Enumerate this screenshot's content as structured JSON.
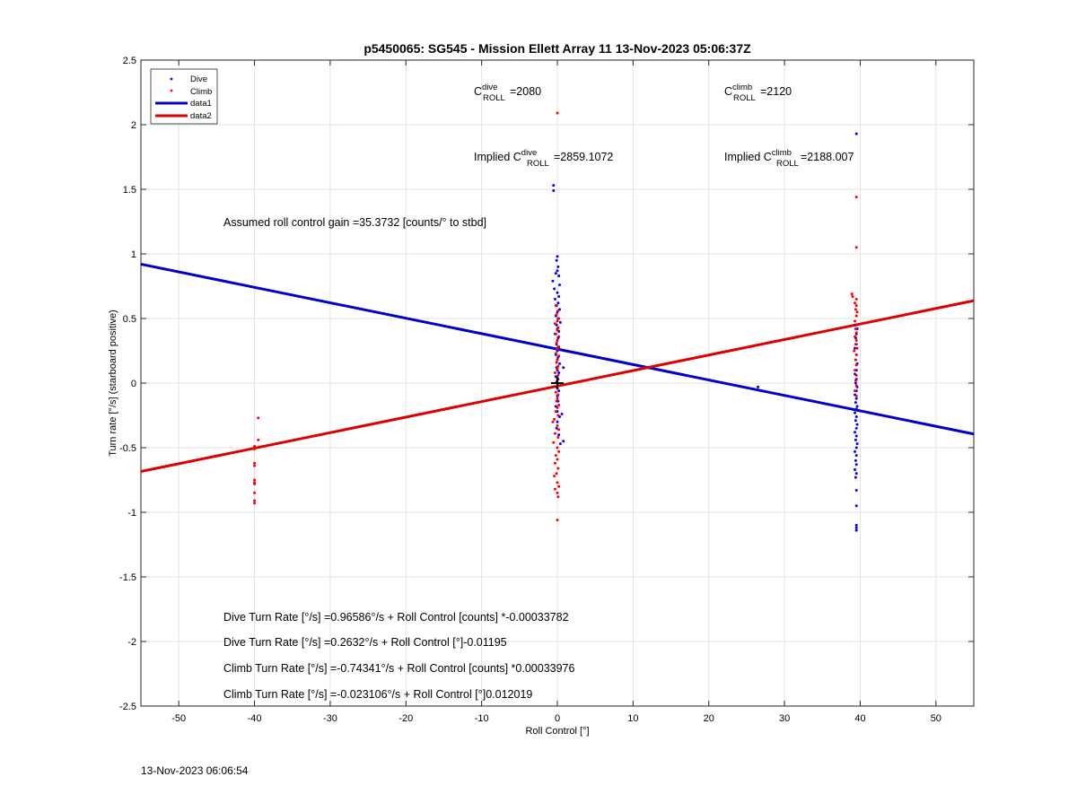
{
  "chart_data": {
    "type": "scatter",
    "title": "p5450065: SG545 - Mission Ellett Array 11 13-Nov-2023 05:06:37Z",
    "xlabel": "Roll Control [°]",
    "ylabel": "Turn rate [°/s] (starboard positive)",
    "xlim": [
      -55,
      55
    ],
    "ylim": [
      -2.5,
      2.5
    ],
    "xticks": [
      -50,
      -40,
      -30,
      -20,
      -10,
      0,
      10,
      20,
      30,
      40,
      50
    ],
    "yticks": [
      -2.5,
      -2,
      -1.5,
      -1,
      -0.5,
      0,
      0.5,
      1,
      1.5,
      2,
      2.5
    ],
    "grid": true,
    "legend_position": "top-left",
    "legend": [
      {
        "label": "Dive",
        "style": "marker",
        "color": "#0000ff"
      },
      {
        "label": "Climb",
        "style": "marker",
        "color": "#ff0000"
      },
      {
        "label": "data1",
        "style": "line",
        "color": "#0000cc"
      },
      {
        "label": "data2",
        "style": "line",
        "color": "#dd0000"
      }
    ],
    "series": [
      {
        "name": "Dive",
        "kind": "scatter",
        "color": "#0000ff",
        "points": [
          [
            -0.5,
            1.53
          ],
          [
            -0.5,
            1.49
          ],
          [
            0,
            0.98
          ],
          [
            -0.1,
            0.95
          ],
          [
            0.1,
            0.9
          ],
          [
            0,
            0.87
          ],
          [
            -0.2,
            0.85
          ],
          [
            0.2,
            0.83
          ],
          [
            -0.6,
            0.79
          ],
          [
            0.3,
            0.76
          ],
          [
            -0.4,
            0.73
          ],
          [
            0,
            0.7
          ],
          [
            0.2,
            0.67
          ],
          [
            -0.3,
            0.65
          ],
          [
            0.1,
            0.62
          ],
          [
            -0.1,
            0.6
          ],
          [
            0.3,
            0.57
          ],
          [
            0,
            0.55
          ],
          [
            -0.2,
            0.52
          ],
          [
            0.1,
            0.5
          ],
          [
            0.4,
            0.47
          ],
          [
            -0.1,
            0.45
          ],
          [
            0,
            0.42
          ],
          [
            0.2,
            0.4
          ],
          [
            -0.3,
            0.38
          ],
          [
            0.1,
            0.35
          ],
          [
            0,
            0.33
          ],
          [
            -0.1,
            0.3
          ],
          [
            0.2,
            0.28
          ],
          [
            0,
            0.25
          ],
          [
            -0.2,
            0.22
          ],
          [
            0.1,
            0.2
          ],
          [
            0,
            0.18
          ],
          [
            0.3,
            0.15
          ],
          [
            -0.1,
            0.12
          ],
          [
            0.8,
            0.12
          ],
          [
            0,
            0.1
          ],
          [
            0.2,
            0.08
          ],
          [
            -0.2,
            0.05
          ],
          [
            0.1,
            0.03
          ],
          [
            0,
            0.0
          ],
          [
            -0.1,
            -0.03
          ],
          [
            0.2,
            -0.06
          ],
          [
            0,
            -0.1
          ],
          [
            0.1,
            -0.14
          ],
          [
            -0.2,
            -0.18
          ],
          [
            0,
            -0.22
          ],
          [
            0.3,
            -0.26
          ],
          [
            0.6,
            -0.24
          ],
          [
            0,
            -0.3
          ],
          [
            -0.1,
            -0.35
          ],
          [
            0.2,
            -0.4
          ],
          [
            0.8,
            -0.45
          ],
          [
            0.4,
            -0.47
          ],
          [
            26.5,
            -0.03
          ],
          [
            39.5,
            1.93
          ],
          [
            39.4,
            0.45
          ],
          [
            39.6,
            0.42
          ],
          [
            39.5,
            0.38
          ],
          [
            39.4,
            0.35
          ],
          [
            39.5,
            0.3
          ],
          [
            39.3,
            0.27
          ],
          [
            39.5,
            0.22
          ],
          [
            39.4,
            0.18
          ],
          [
            39.6,
            0.15
          ],
          [
            39.5,
            0.1
          ],
          [
            39.3,
            0.07
          ],
          [
            39.5,
            0.03
          ],
          [
            39.4,
            0.0
          ],
          [
            39.6,
            -0.03
          ],
          [
            39.5,
            -0.06
          ],
          [
            39.3,
            -0.09
          ],
          [
            39.5,
            -0.12
          ],
          [
            39.4,
            -0.15
          ],
          [
            39.6,
            -0.18
          ],
          [
            39.5,
            -0.2
          ],
          [
            39.3,
            -0.23
          ],
          [
            39.5,
            -0.26
          ],
          [
            39.4,
            -0.29
          ],
          [
            39.6,
            -0.32
          ],
          [
            39.5,
            -0.35
          ],
          [
            39.3,
            -0.38
          ],
          [
            39.5,
            -0.41
          ],
          [
            39.4,
            -0.44
          ],
          [
            39.6,
            -0.47
          ],
          [
            39.5,
            -0.5
          ],
          [
            39.3,
            -0.53
          ],
          [
            39.5,
            -0.56
          ],
          [
            39.4,
            -0.6
          ],
          [
            39.5,
            -0.63
          ],
          [
            39.3,
            -0.67
          ],
          [
            39.5,
            -0.7
          ],
          [
            39.4,
            -0.73
          ],
          [
            39.5,
            -0.83
          ],
          [
            39.5,
            -0.95
          ],
          [
            39.5,
            -1.1
          ],
          [
            39.5,
            -1.12
          ],
          [
            39.5,
            -1.14
          ]
        ]
      },
      {
        "name": "Climb",
        "kind": "scatter",
        "color": "#ff0000",
        "points": [
          [
            -39.5,
            -0.27
          ],
          [
            -39.5,
            -0.44
          ],
          [
            -40,
            -0.49
          ],
          [
            -40,
            -0.51
          ],
          [
            -40,
            -0.62
          ],
          [
            -40,
            -0.64
          ],
          [
            -40,
            -0.75
          ],
          [
            -40,
            -0.77
          ],
          [
            -40,
            -0.78
          ],
          [
            -40,
            -0.85
          ],
          [
            -40,
            -0.91
          ],
          [
            -40,
            -0.93
          ],
          [
            0,
            2.09
          ],
          [
            -0.2,
            0.6
          ],
          [
            0.1,
            0.56
          ],
          [
            -0.1,
            0.53
          ],
          [
            0.2,
            0.5
          ],
          [
            0,
            0.48
          ],
          [
            -0.3,
            0.46
          ],
          [
            0.1,
            0.43
          ],
          [
            0,
            0.41
          ],
          [
            -0.2,
            0.38
          ],
          [
            0.2,
            0.36
          ],
          [
            0,
            0.33
          ],
          [
            -0.1,
            0.31
          ],
          [
            0.1,
            0.28
          ],
          [
            0,
            0.26
          ],
          [
            -0.2,
            0.23
          ],
          [
            0.2,
            0.21
          ],
          [
            0,
            0.18
          ],
          [
            -0.1,
            0.16
          ],
          [
            0.1,
            0.13
          ],
          [
            0,
            0.11
          ],
          [
            -0.3,
            0.08
          ],
          [
            0.1,
            0.06
          ],
          [
            0,
            0.03
          ],
          [
            -0.1,
            0.01
          ],
          [
            0.2,
            -0.02
          ],
          [
            0,
            -0.04
          ],
          [
            -0.2,
            -0.07
          ],
          [
            0.1,
            -0.09
          ],
          [
            0,
            -0.12
          ],
          [
            -0.1,
            -0.14
          ],
          [
            0.2,
            -0.17
          ],
          [
            0,
            -0.19
          ],
          [
            -0.2,
            -0.22
          ],
          [
            0.1,
            -0.25
          ],
          [
            -0.4,
            -0.28
          ],
          [
            -0.6,
            -0.3
          ],
          [
            0,
            -0.33
          ],
          [
            0.2,
            -0.36
          ],
          [
            -0.3,
            -0.39
          ],
          [
            0.1,
            -0.42
          ],
          [
            -0.5,
            -0.46
          ],
          [
            0,
            -0.5
          ],
          [
            0.2,
            -0.53
          ],
          [
            -0.2,
            -0.56
          ],
          [
            0,
            -0.59
          ],
          [
            -0.3,
            -0.62
          ],
          [
            0.1,
            -0.66
          ],
          [
            -0.1,
            -0.7
          ],
          [
            -0.4,
            -0.72
          ],
          [
            0,
            -0.77
          ],
          [
            0.2,
            -0.8
          ],
          [
            -0.3,
            -0.82
          ],
          [
            0,
            -0.85
          ],
          [
            0.1,
            -0.88
          ],
          [
            0,
            -1.06
          ],
          [
            39.5,
            1.44
          ],
          [
            39.5,
            1.05
          ],
          [
            38.9,
            0.69
          ],
          [
            39.0,
            0.67
          ],
          [
            39.5,
            0.65
          ],
          [
            39.3,
            0.62
          ],
          [
            39.5,
            0.6
          ],
          [
            39.4,
            0.57
          ],
          [
            39.6,
            0.55
          ],
          [
            39.5,
            0.52
          ],
          [
            39.3,
            0.48
          ],
          [
            39.5,
            0.45
          ],
          [
            39.4,
            0.42
          ],
          [
            39.5,
            0.39
          ],
          [
            39.3,
            0.36
          ],
          [
            39.5,
            0.33
          ],
          [
            39.4,
            0.3
          ],
          [
            39.6,
            0.27
          ],
          [
            39.2,
            0.25
          ],
          [
            39.5,
            0.22
          ],
          [
            39.4,
            0.18
          ],
          [
            39.5,
            0.14
          ],
          [
            39.3,
            0.1
          ],
          [
            39.5,
            0.06
          ],
          [
            39.4,
            0.02
          ],
          [
            39.5,
            -0.02
          ],
          [
            39.3,
            -0.06
          ],
          [
            39.5,
            -0.1
          ]
        ]
      },
      {
        "name": "data1",
        "kind": "line",
        "color": "#0000cc",
        "points": [
          [
            -55,
            0.9205
          ],
          [
            55,
            -0.3941
          ]
        ]
      },
      {
        "name": "data2",
        "kind": "line",
        "color": "#dd0000",
        "points": [
          [
            -55,
            -0.6842
          ],
          [
            55,
            0.6378
          ]
        ]
      }
    ],
    "center_marker": {
      "x": 0,
      "y": 0,
      "symbol": "+"
    },
    "annotations": {
      "c_roll_dive_base": "C",
      "c_roll_dive_sup": "dive",
      "c_roll_dive_sub": "ROLL",
      "c_roll_dive_value": "=2080",
      "c_roll_climb_base": "C",
      "c_roll_climb_sup": "climb",
      "c_roll_climb_sub": "ROLL",
      "c_roll_climb_value": "=2120",
      "implied_dive_prefix": "Implied C",
      "implied_dive_sup": "dive",
      "implied_dive_sub": "ROLL",
      "implied_dive_value": "=2859.1072",
      "implied_climb_prefix": "Implied C",
      "implied_climb_sup": "climb",
      "implied_climb_sub": "ROLL",
      "implied_climb_value": "=2188.007",
      "gain": "Assumed roll control gain =35.3732 [counts/° to stbd]",
      "eq1": "Dive Turn Rate [°/s] =0.96586°/s + Roll Control [counts] *-0.00033782",
      "eq2": "Dive Turn Rate [°/s] =0.2632°/s + Roll Control [°]-0.01195",
      "eq3": "Climb Turn Rate [°/s] =-0.74341°/s + Roll Control [counts] *0.00033976",
      "eq4": "Climb Turn Rate [°/s] =-0.023106°/s + Roll Control [°]0.012019"
    }
  },
  "footer": {
    "date": "13-Nov-2023 06:06:54"
  }
}
